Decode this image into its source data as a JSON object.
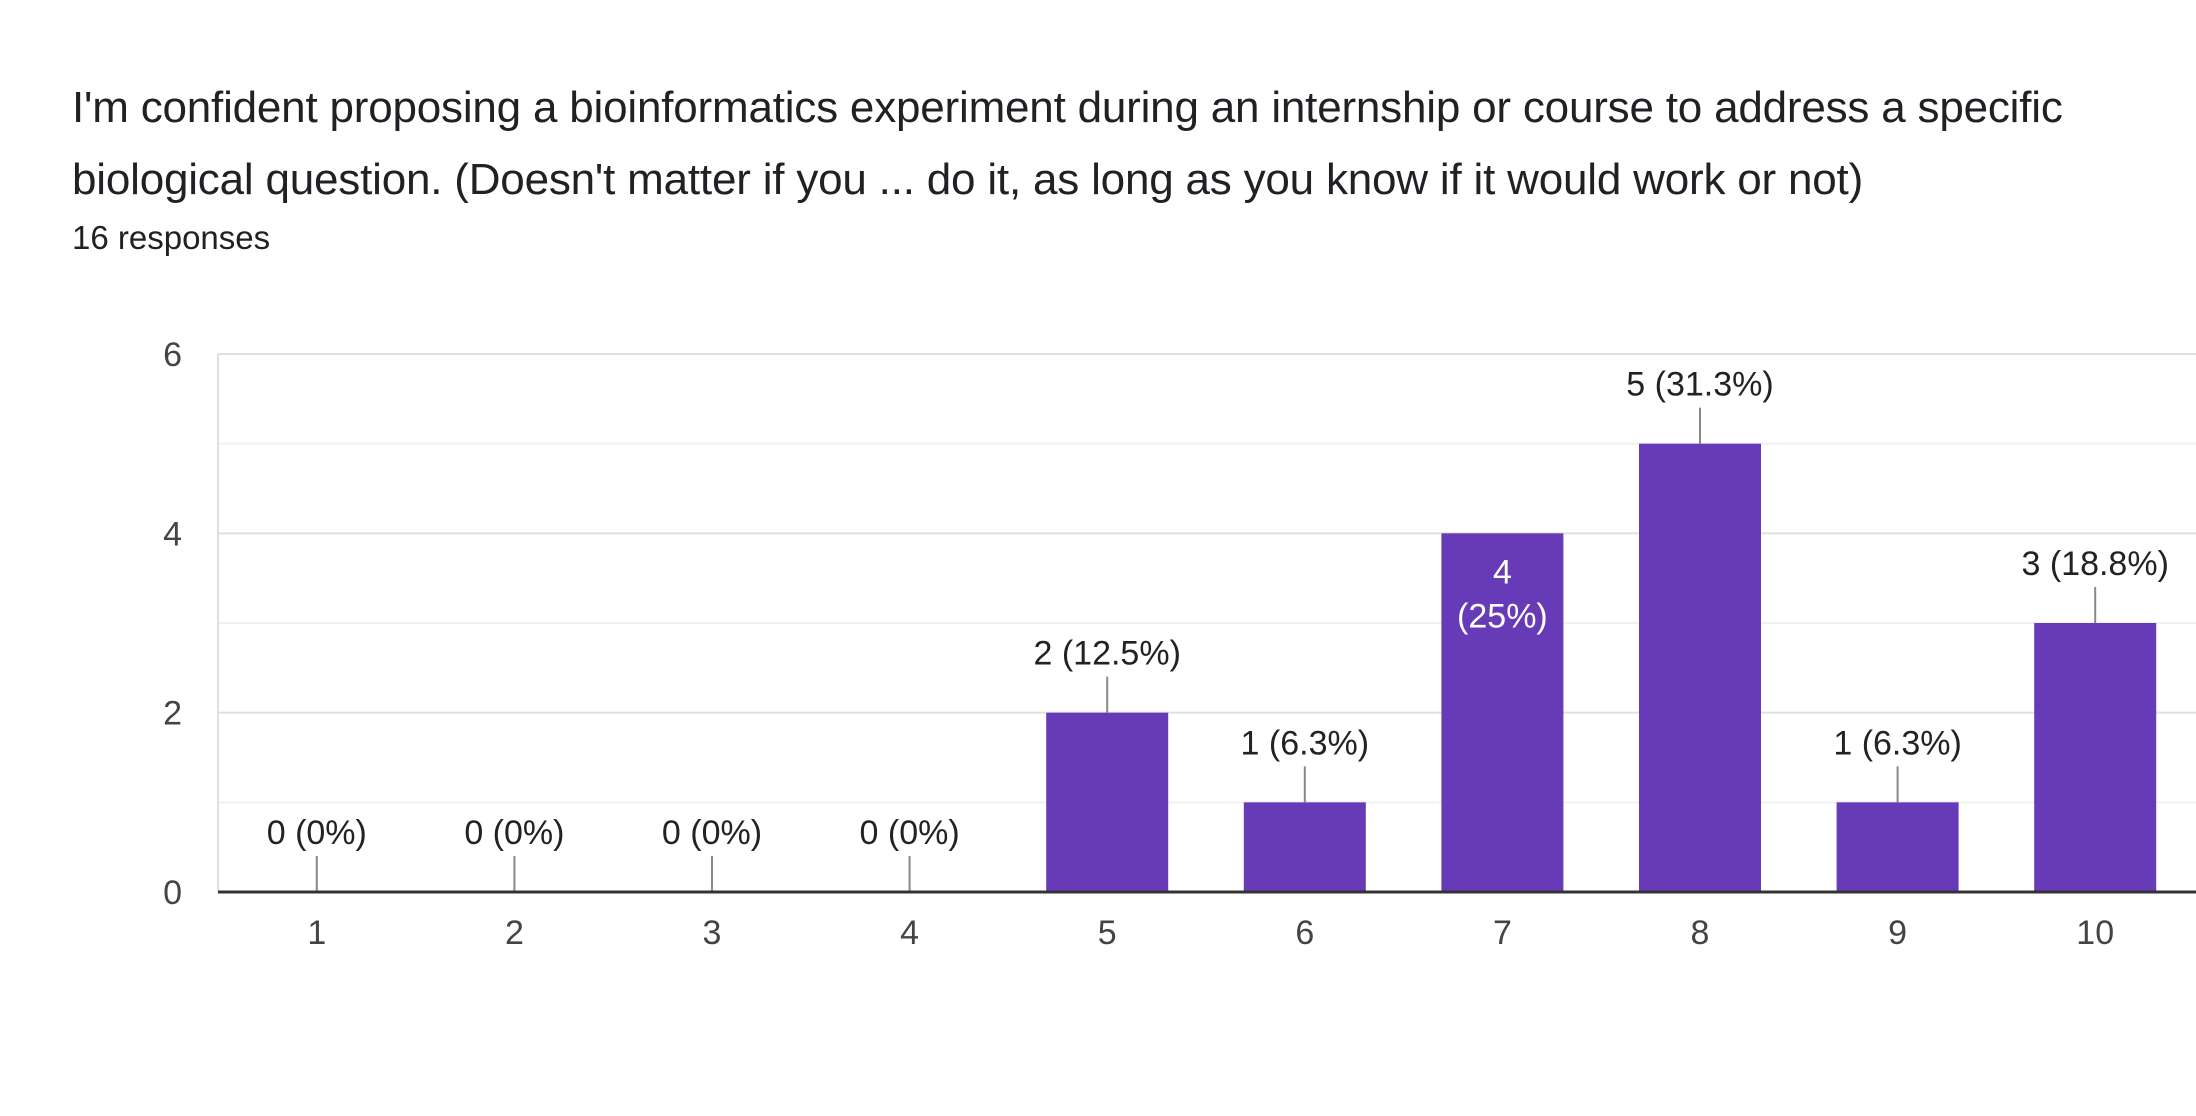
{
  "question": {
    "title": "I'm confident proposing a bioinformatics experiment during an internship or course to address a specific biological question. (Doesn't matter if you ... do it, as long as you know if it would work or not)",
    "responses_label": "16 responses"
  },
  "colors": {
    "bar": "#673ab7",
    "gridline": "#e8e8e8",
    "baseline": "#333333",
    "leader": "#888888"
  },
  "chart_data": {
    "type": "bar",
    "categories": [
      "1",
      "2",
      "3",
      "4",
      "5",
      "6",
      "7",
      "8",
      "9",
      "10"
    ],
    "values": [
      0,
      0,
      0,
      0,
      2,
      1,
      4,
      5,
      1,
      3
    ],
    "data_labels": [
      "0 (0%)",
      "0 (0%)",
      "0 (0%)",
      "0 (0%)",
      "2 (12.5%)",
      "1 (6.3%)",
      "4 (25%)",
      "5 (31.3%)",
      "1 (6.3%)",
      "3 (18.8%)"
    ],
    "ylim": [
      0,
      6
    ],
    "yticks": [
      0,
      2,
      4,
      6
    ],
    "grid": true,
    "legend": "none"
  }
}
